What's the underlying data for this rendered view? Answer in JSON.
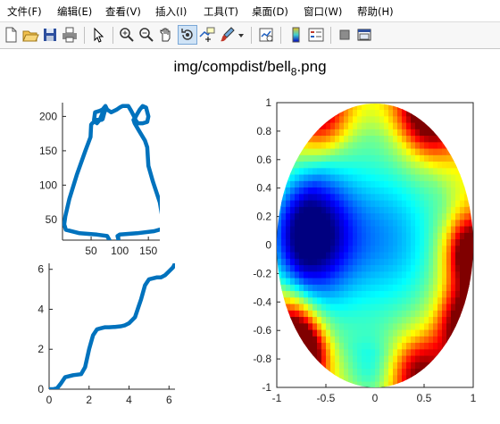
{
  "menubar": {
    "items": [
      {
        "label": "文件(F)"
      },
      {
        "label": "编辑(E)"
      },
      {
        "label": "查看(V)"
      },
      {
        "label": "插入(I)"
      },
      {
        "label": "工具(T)"
      },
      {
        "label": "桌面(D)"
      },
      {
        "label": "窗口(W)"
      },
      {
        "label": "帮助(H)"
      }
    ]
  },
  "toolbar": {
    "icons": [
      "new-figure-icon",
      "open-file-icon",
      "save-icon",
      "print-icon",
      "pointer-icon",
      "zoom-in-icon",
      "zoom-out-icon",
      "pan-icon",
      "rotate-3d-icon",
      "data-cursor-icon",
      "brush-icon",
      "dropdown-arrow-icon",
      "link-plot-icon",
      "colorbar-icon",
      "legend-icon",
      "hide-plot-tools-icon",
      "show-plot-tools-icon"
    ],
    "active": "rotate-3d-icon"
  },
  "figure": {
    "title_main": "img/compdist/bell",
    "title_sub": "8",
    "title_ext": ".png"
  },
  "chart_data": [
    {
      "type": "line",
      "name": "boundary-curve",
      "xlim": [
        0,
        170
      ],
      "ylim": [
        20,
        220
      ],
      "xticks": [
        50,
        100,
        150
      ],
      "yticks": [
        50,
        100,
        150,
        200
      ],
      "line_color": "#0072bd",
      "x": [
        75,
        74,
        70,
        68,
        60,
        52,
        50,
        49,
        40,
        25,
        12,
        5,
        3,
        6,
        30,
        60,
        78,
        82,
        80,
        85,
        95,
        98,
        96,
        100,
        130,
        160,
        173,
        176,
        174,
        170,
        158,
        150,
        148,
        144,
        133,
        126,
        124,
        125,
        127,
        130,
        135,
        140,
        146,
        150,
        148,
        140,
        132,
        128,
        125,
        120,
        115,
        105,
        100,
        95,
        85,
        78,
        75,
        70,
        65,
        57,
        55,
        60,
        65,
        75
      ],
      "y": [
        215,
        208,
        196,
        195,
        195,
        190,
        188,
        170,
        150,
        115,
        80,
        55,
        43,
        35,
        30,
        28,
        26,
        20,
        18,
        17,
        17,
        20,
        26,
        28,
        30,
        33,
        36,
        42,
        55,
        75,
        105,
        128,
        155,
        165,
        180,
        190,
        195,
        196,
        198,
        203,
        210,
        215,
        213,
        200,
        192,
        190,
        190,
        194,
        200,
        208,
        215,
        215,
        213,
        210,
        206,
        210,
        215,
        210,
        208,
        206,
        195,
        190,
        195,
        215
      ]
    },
    {
      "type": "line",
      "name": "cumulative-angle",
      "xlim": [
        0,
        6.3
      ],
      "ylim": [
        0,
        6.3
      ],
      "xticks": [
        0,
        2,
        4,
        6
      ],
      "yticks": [
        0,
        2,
        4,
        6
      ],
      "line_color": "#0072bd",
      "x": [
        0,
        0.2,
        0.4,
        0.6,
        0.8,
        1.2,
        1.6,
        1.8,
        2.0,
        2.2,
        2.4,
        2.6,
        2.8,
        3.0,
        3.3,
        3.6,
        3.8,
        4.0,
        4.3,
        4.5,
        4.6,
        4.8,
        5.0,
        5.2,
        5.4,
        5.6,
        5.8,
        6.0,
        6.2,
        6.28
      ],
      "y": [
        0,
        0,
        0.05,
        0.3,
        0.6,
        0.7,
        0.75,
        1.1,
        2.0,
        2.7,
        3.0,
        3.05,
        3.1,
        3.1,
        3.12,
        3.15,
        3.2,
        3.3,
        3.6,
        4.2,
        4.5,
        5.2,
        5.5,
        5.55,
        5.6,
        5.6,
        5.7,
        5.9,
        6.1,
        6.25
      ]
    },
    {
      "type": "heatmap",
      "name": "disk-distortion",
      "xlim": [
        -1,
        1
      ],
      "ylim": [
        -1,
        1
      ],
      "xticks": [
        -1,
        -0.5,
        0,
        0.5,
        1
      ],
      "yticks": [
        1,
        0.8,
        0.6,
        0.4,
        0.2,
        0,
        -0.2,
        -0.4,
        -0.6,
        -0.8,
        -1
      ],
      "xtick_labels": [
        "-1",
        "-0.5",
        "0",
        "0.5",
        "1"
      ],
      "ytick_labels": [
        "1",
        "0.8",
        "0.6",
        "0.4",
        "0.2",
        "0",
        "-0.2",
        "-0.4",
        "-0.6",
        "-0.8",
        "-1"
      ],
      "colormap": "jet",
      "blobs": [
        {
          "x": -0.68,
          "y": 0.08,
          "value": -1.0,
          "spread": 0.32
        },
        {
          "x": 0.12,
          "y": 0.05,
          "value": -0.35,
          "spread": 0.35
        },
        {
          "x": -0.05,
          "y": -0.92,
          "value": -0.25,
          "spread": 0.18
        },
        {
          "x": 0.55,
          "y": 0.95,
          "value": 1.0,
          "spread": 0.22
        },
        {
          "x": -0.55,
          "y": 0.93,
          "value": 0.6,
          "spread": 0.2
        },
        {
          "x": 0.97,
          "y": -0.05,
          "value": 1.0,
          "spread": 0.18
        },
        {
          "x": 0.92,
          "y": -0.55,
          "value": 0.9,
          "spread": 0.2
        },
        {
          "x": -0.85,
          "y": -0.6,
          "value": 0.8,
          "spread": 0.18
        },
        {
          "x": -0.7,
          "y": -0.78,
          "value": 0.8,
          "spread": 0.15
        },
        {
          "x": 0.45,
          "y": -0.9,
          "value": 0.7,
          "spread": 0.2
        }
      ]
    }
  ]
}
